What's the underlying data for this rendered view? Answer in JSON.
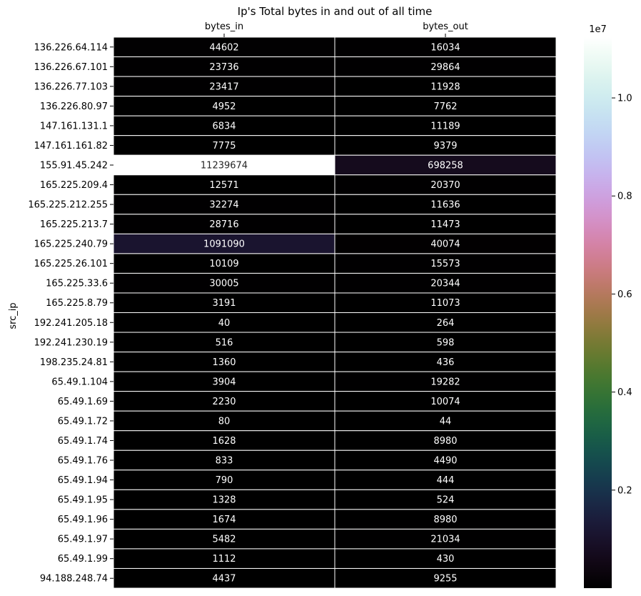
{
  "chart_data": {
    "type": "heatmap",
    "title": "Ip's Total bytes in and out of all time",
    "xlabel": "",
    "ylabel": "src_ip",
    "columns": [
      "bytes_in",
      "bytes_out"
    ],
    "rows": [
      {
        "label": "136.226.64.114",
        "values": [
          44602,
          16034
        ]
      },
      {
        "label": "136.226.67.101",
        "values": [
          23736,
          29864
        ]
      },
      {
        "label": "136.226.77.103",
        "values": [
          23417,
          11928
        ]
      },
      {
        "label": "136.226.80.97",
        "values": [
          4952,
          7762
        ]
      },
      {
        "label": "147.161.131.1",
        "values": [
          6834,
          11189
        ]
      },
      {
        "label": "147.161.161.82",
        "values": [
          7775,
          9379
        ]
      },
      {
        "label": "155.91.45.242",
        "values": [
          11239674,
          698258
        ]
      },
      {
        "label": "165.225.209.4",
        "values": [
          12571,
          20370
        ]
      },
      {
        "label": "165.225.212.255",
        "values": [
          32274,
          11636
        ]
      },
      {
        "label": "165.225.213.7",
        "values": [
          28716,
          11473
        ]
      },
      {
        "label": "165.225.240.79",
        "values": [
          1091090,
          40074
        ]
      },
      {
        "label": "165.225.26.101",
        "values": [
          10109,
          15573
        ]
      },
      {
        "label": "165.225.33.6",
        "values": [
          30005,
          20344
        ]
      },
      {
        "label": "165.225.8.79",
        "values": [
          3191,
          11073
        ]
      },
      {
        "label": "192.241.205.18",
        "values": [
          40,
          264
        ]
      },
      {
        "label": "192.241.230.19",
        "values": [
          516,
          598
        ]
      },
      {
        "label": "198.235.24.81",
        "values": [
          1360,
          436
        ]
      },
      {
        "label": "65.49.1.104",
        "values": [
          3904,
          19282
        ]
      },
      {
        "label": "65.49.1.69",
        "values": [
          2230,
          10074
        ]
      },
      {
        "label": "65.49.1.72",
        "values": [
          80,
          44
        ]
      },
      {
        "label": "65.49.1.74",
        "values": [
          1628,
          8980
        ]
      },
      {
        "label": "65.49.1.76",
        "values": [
          833,
          4490
        ]
      },
      {
        "label": "65.49.1.94",
        "values": [
          790,
          444
        ]
      },
      {
        "label": "65.49.1.95",
        "values": [
          1328,
          524
        ]
      },
      {
        "label": "65.49.1.96",
        "values": [
          1674,
          8980
        ]
      },
      {
        "label": "65.49.1.97",
        "values": [
          5482,
          21034
        ]
      },
      {
        "label": "65.49.1.99",
        "values": [
          1112,
          430
        ]
      },
      {
        "label": "94.188.248.74",
        "values": [
          4437,
          9255
        ]
      }
    ],
    "colorbar": {
      "colormap": "cubehelix",
      "vmin": 40,
      "vmax": 11239674,
      "ticks": [
        0.2,
        0.4,
        0.6,
        0.8,
        1.0
      ],
      "ticks_scale": 10000000,
      "offset_label": "1e7"
    },
    "grid": true,
    "legend": "right"
  }
}
